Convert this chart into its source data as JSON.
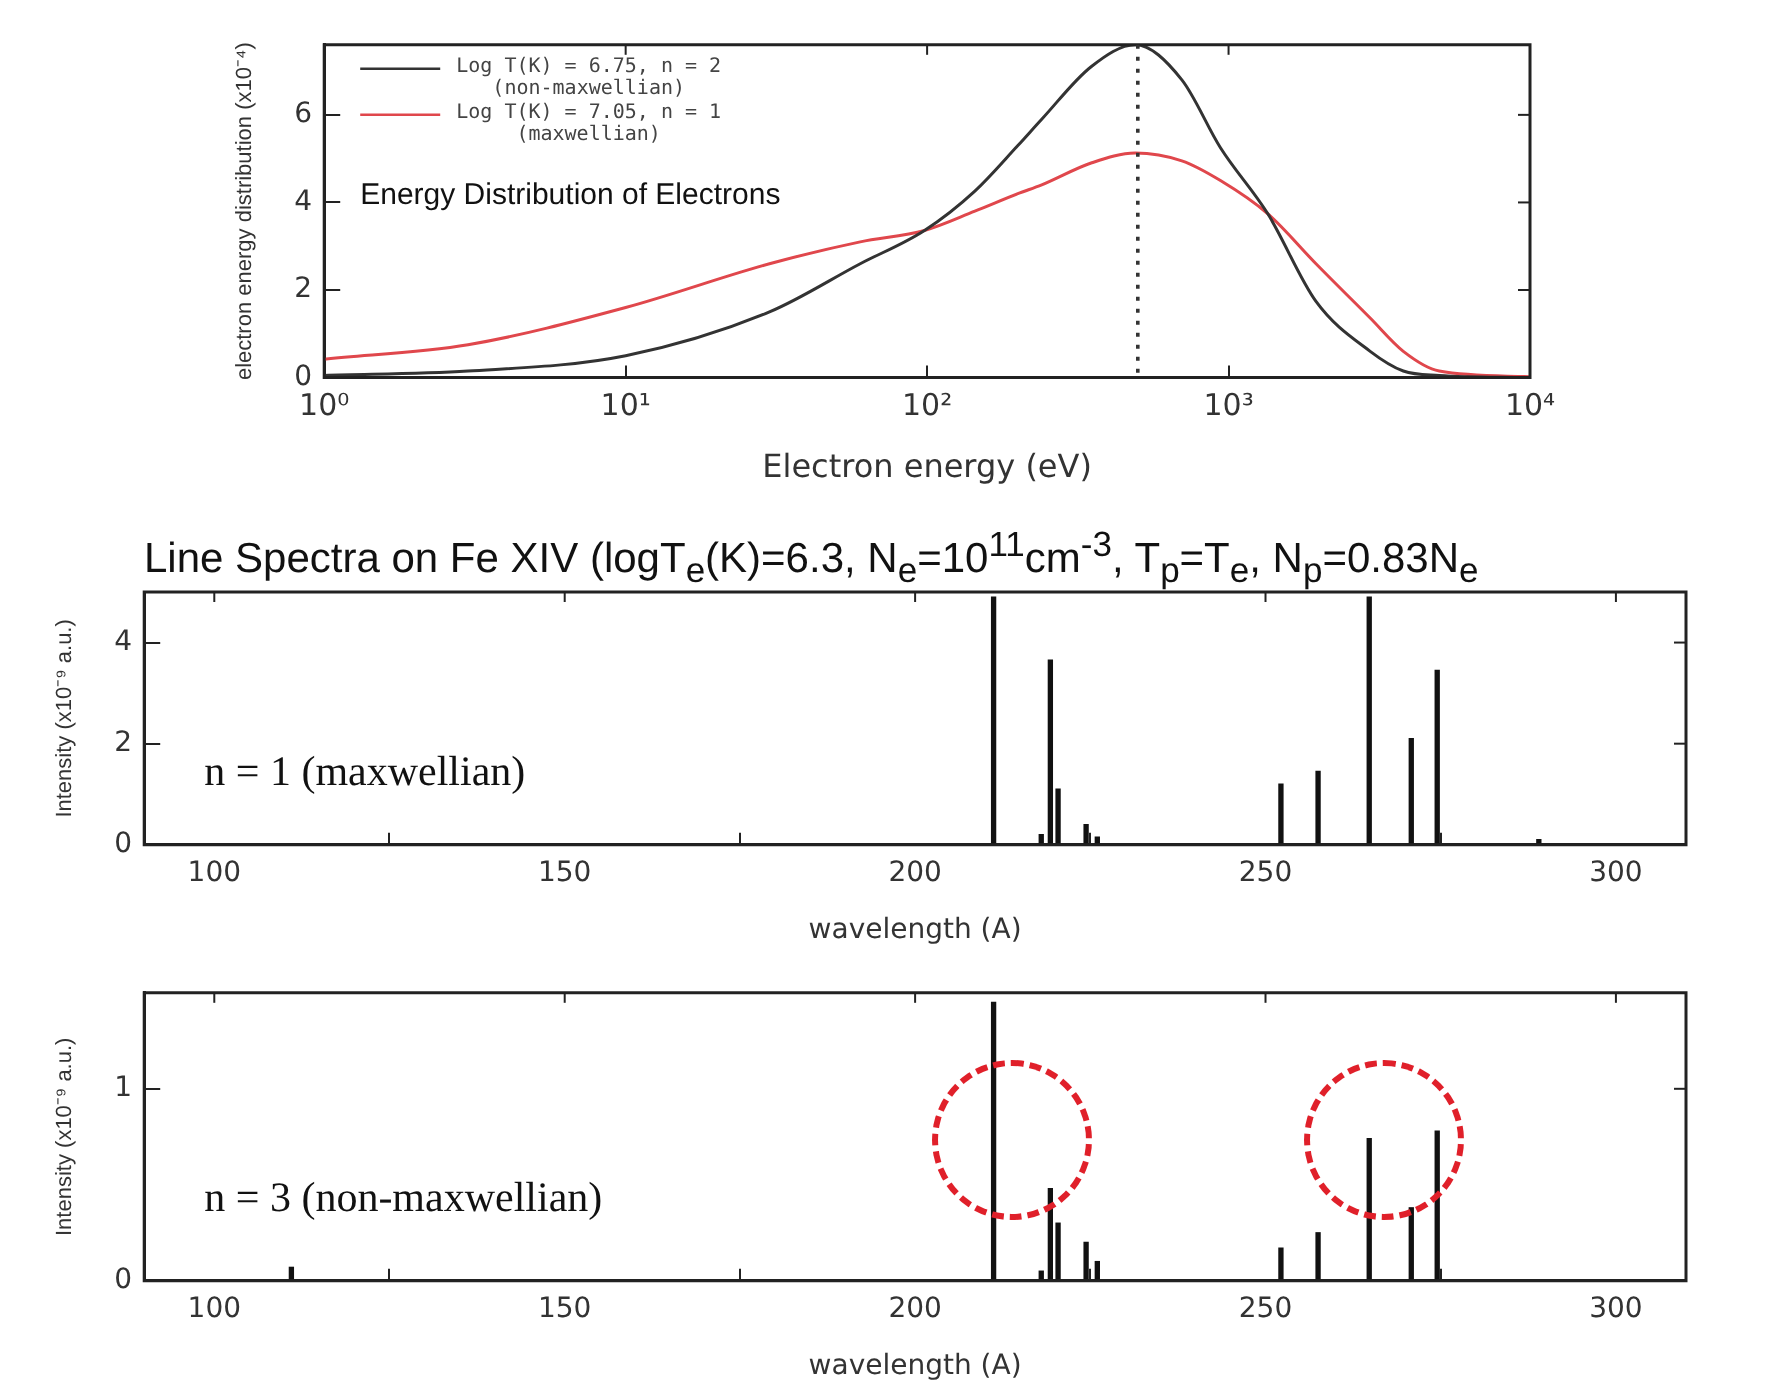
{
  "chart_data": [
    {
      "type": "line",
      "xlabel": "Electron energy (eV)",
      "ylabel": "electron energy distribution (x10⁻⁴)",
      "log": "x",
      "xlim": [
        1,
        10000
      ],
      "xticks": [
        {
          "value": 1,
          "label": "10⁰"
        },
        {
          "value": 10,
          "label": "10¹"
        },
        {
          "value": 100,
          "label": "10²"
        },
        {
          "value": 1000,
          "label": "10³"
        },
        {
          "value": 10000,
          "label": "10⁴"
        }
      ],
      "ylim": [
        0,
        7.6
      ],
      "yticks": [
        0,
        2,
        4,
        6
      ],
      "grid": false,
      "legend": "top left",
      "marker": "none",
      "line_style": "solid",
      "x": [
        1,
        3,
        10,
        30,
        60,
        98,
        144,
        200,
        240,
        350,
        490,
        700,
        940,
        1350,
        1950,
        2950,
        3800,
        5000,
        10000
      ],
      "series": [
        {
          "name": "Log T(K) = 6.75, n = 2 (non-maxwellian)",
          "color": "#333333",
          "values": [
            0.05,
            0.15,
            0.5,
            1.5,
            2.6,
            3.36,
            4.26,
            5.3,
            5.9,
            7.1,
            7.6,
            6.8,
            5.25,
            3.74,
            1.74,
            0.6,
            0.15,
            0.05,
            0
          ]
        },
        {
          "name": "Log T(K) = 7.05, n = 1 (maxwellian)",
          "color": "#e0474c",
          "values": [
            0.42,
            0.75,
            1.6,
            2.6,
            3.1,
            3.36,
            3.8,
            4.2,
            4.4,
            4.9,
            5.13,
            4.95,
            4.5,
            3.74,
            2.6,
            1.36,
            0.6,
            0.15,
            0.02
          ]
        }
      ],
      "ref_lines": [
        {
          "axis": "x",
          "value": 500,
          "line_style": "dotted",
          "color": "#333333"
        }
      ],
      "annotations": [
        "Energy Distribution of Electrons"
      ]
    },
    {
      "type": "bar",
      "title": "Line Spectra on Fe XIV (logT$_{e}$(K)=6.3, N$_{e}$=10$^{11}$cm$^{-3}$, T$_{p}$=T$_{e}$, N$_{p}$=0.83N$_{e}$",
      "xlabel": "wavelength (A)",
      "ylabel": "Intensity (x10⁻⁹ a.u.)",
      "xlim": [
        90,
        310
      ],
      "xticks": [
        100,
        150,
        200,
        250,
        300
      ],
      "ylim": [
        0,
        5
      ],
      "yticks": [
        0,
        2,
        4
      ],
      "grid": false,
      "legend": false,
      "x": [
        211.2,
        218,
        219.3,
        220.4,
        224.4,
        226,
        252.2,
        257.5,
        264.8,
        270.8,
        274.5,
        289
      ],
      "series": [
        {
          "color": "#111111",
          "values": [
            4.9,
            0.2,
            3.65,
            1.1,
            0.4,
            0.15,
            1.2,
            1.45,
            4.9,
            2.1,
            3.45,
            0.1
          ]
        }
      ],
      "annotations": [
        "n = 1 (maxwellian)"
      ]
    },
    {
      "type": "bar",
      "xlabel": "wavelength (A)",
      "ylabel": "Intensity (x10⁻⁹ a.u.)",
      "xlim": [
        90,
        310
      ],
      "xticks": [
        100,
        150,
        200,
        250,
        300
      ],
      "ylim": [
        0,
        1.5
      ],
      "yticks": [
        0,
        1
      ],
      "grid": false,
      "legend": false,
      "x": [
        111,
        211.2,
        218,
        219.3,
        220.4,
        224.4,
        226,
        252.2,
        257.5,
        264.8,
        270.8,
        274.5
      ],
      "series": [
        {
          "color": "#111111",
          "values": [
            0.07,
            1.45,
            0.05,
            0.48,
            0.3,
            0.2,
            0.1,
            0.17,
            0.25,
            0.74,
            0.38,
            0.78
          ]
        }
      ],
      "annotations": [
        "n = 3 (non-maxwellian)"
      ]
    }
  ]
}
